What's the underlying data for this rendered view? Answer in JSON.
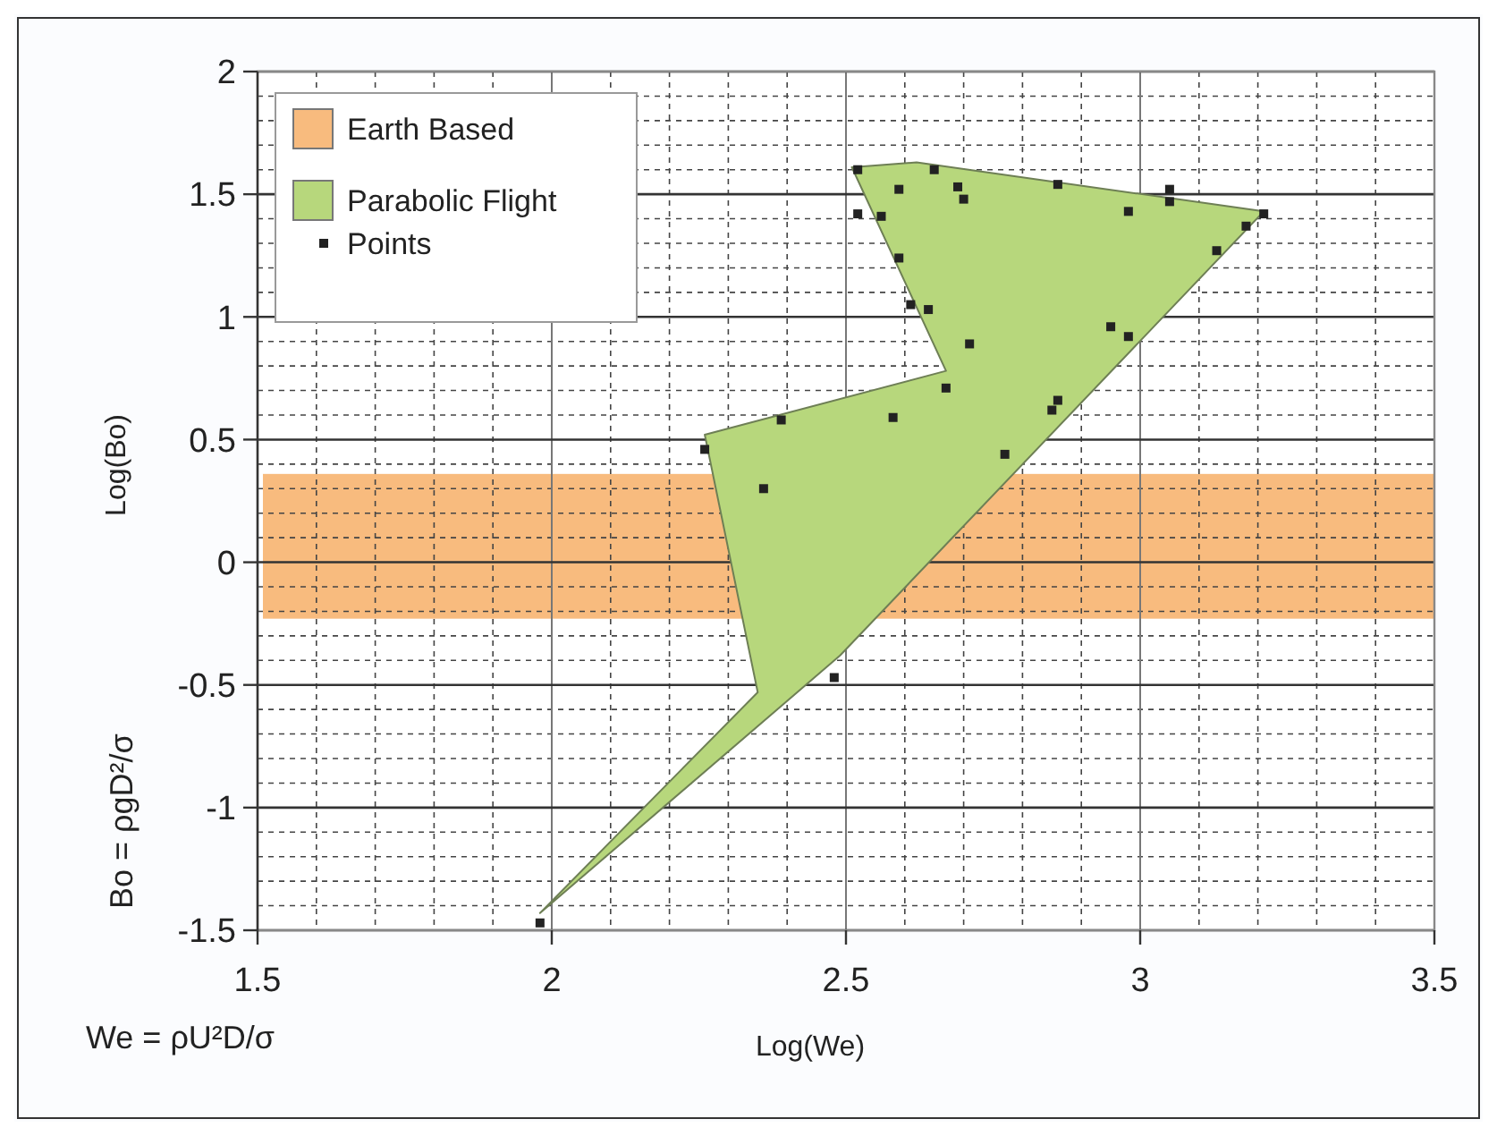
{
  "chart_data": {
    "type": "area",
    "xlabel": "Log(We)",
    "ylabel": "Log(Bo)",
    "xlim": [
      1.5,
      3.5
    ],
    "ylim": [
      -1.5,
      2
    ],
    "xticks": [
      1.5,
      2,
      2.5,
      3,
      3.5
    ],
    "yticks": [
      -1.5,
      -1,
      -0.5,
      0,
      0.5,
      1,
      1.5,
      2
    ],
    "grid": true,
    "legend": "top left",
    "bands": [
      {
        "axis": "y",
        "from": -0.23,
        "to": 0.36,
        "label": "Earth Based",
        "color": "#f8bb7e"
      }
    ],
    "series": [
      {
        "name": "Parabolic Flight",
        "color": "#b7d77c",
        "x": [
          2.51,
          2.62,
          3.21,
          2.49,
          1.98,
          2.35,
          2.26,
          2.67,
          2.51
        ],
        "values": [
          1.61,
          1.63,
          1.43,
          -0.38,
          -1.43,
          -0.53,
          0.52,
          0.78,
          1.61
        ]
      },
      {
        "name": "Points",
        "type": "scatter",
        "color": "#222222",
        "marker": "square",
        "x": [
          2.52,
          2.65,
          2.59,
          2.69,
          2.7,
          2.52,
          2.56,
          2.59,
          2.61,
          2.64,
          2.71,
          2.67,
          2.58,
          2.39,
          2.26,
          2.36,
          2.86,
          3.05,
          3.05,
          2.98,
          3.21,
          3.18,
          3.13,
          2.95,
          2.98,
          2.86,
          2.85,
          2.77,
          2.48,
          1.98
        ],
        "values": [
          1.6,
          1.6,
          1.52,
          1.53,
          1.48,
          1.42,
          1.41,
          1.24,
          1.05,
          1.03,
          0.89,
          0.71,
          0.59,
          0.58,
          0.46,
          0.3,
          1.54,
          1.52,
          1.47,
          1.43,
          1.42,
          1.37,
          1.27,
          0.96,
          0.92,
          0.66,
          0.62,
          0.44,
          -0.47,
          -1.47
        ]
      }
    ],
    "annotations": [
      "Bo = ρgD²/σ",
      "We = ρU²D/σ"
    ]
  }
}
